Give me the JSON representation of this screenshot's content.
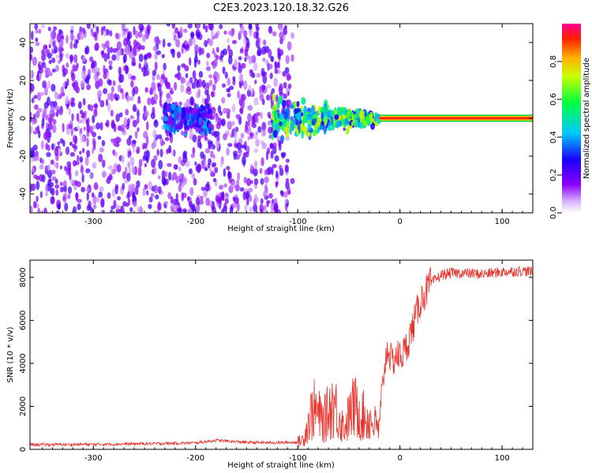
{
  "title": "C2E3.2023.120.18.32.G26",
  "chart_data": [
    {
      "type": "heatmap",
      "title": "",
      "xlabel": "Height of straight line (km)",
      "ylabel": "Frequency (Hz)",
      "xlim": [
        -362,
        130
      ],
      "ylim": [
        -50,
        50
      ],
      "xticks": [
        -300,
        -200,
        -100,
        0,
        100
      ],
      "yticks": [
        -40,
        -20,
        0,
        20,
        40
      ],
      "colorbar": {
        "label": "Normalized spectral amplitude",
        "ticks": [
          0.0,
          0.2,
          0.4,
          0.6,
          0.8
        ],
        "range": [
          0,
          1
        ],
        "colors": [
          "#ffffff",
          "#a000ff",
          "#2a00ff",
          "#00c8ff",
          "#00ff60",
          "#c8ff00",
          "#ffb000",
          "#ff2000",
          "#ff00a0"
        ]
      },
      "regions": [
        {
          "x": [
            -362,
            -105
          ],
          "freq_spread": [
            -50,
            50
          ],
          "amplitude": 0.1,
          "description_color": "purple"
        },
        {
          "x": [
            -230,
            -185
          ],
          "freq_spread": [
            -12,
            10
          ],
          "amplitude": 0.3
        },
        {
          "x": [
            -125,
            -20
          ],
          "freq_spread": [
            -18,
            12
          ],
          "amplitude": 0.55
        },
        {
          "x": [
            -20,
            130
          ],
          "freq_spread": [
            -1,
            1
          ],
          "amplitude": 0.95
        }
      ]
    },
    {
      "type": "line",
      "title": "",
      "xlabel": "Height of straight line (km)",
      "ylabel": "SNR (10 * v/v)",
      "xlim": [
        -362,
        130
      ],
      "ylim": [
        0,
        8800
      ],
      "xticks": [
        -300,
        -200,
        -100,
        0,
        100
      ],
      "yticks": [
        0,
        2000,
        4000,
        6000,
        8000
      ],
      "color": "#e8302a",
      "series": [
        {
          "x": [
            -362,
            -300,
            -250,
            -200,
            -180,
            -150,
            -120,
            -100,
            -95,
            -85,
            -75,
            -65,
            -55,
            -45,
            -35,
            -25,
            -20,
            -16,
            -12,
            -8,
            -4,
            0,
            5,
            10,
            15,
            20,
            25,
            30,
            35,
            40,
            50,
            60,
            80,
            100,
            120,
            130
          ],
          "y": [
            220,
            230,
            260,
            300,
            420,
            320,
            310,
            330,
            450,
            1900,
            1300,
            2200,
            1000,
            2000,
            1500,
            1200,
            900,
            3500,
            4800,
            4000,
            4400,
            4300,
            4600,
            5300,
            6100,
            6900,
            7300,
            7700,
            7900,
            8100,
            8200,
            8200,
            8150,
            8250,
            8300,
            8250
          ]
        }
      ]
    }
  ]
}
